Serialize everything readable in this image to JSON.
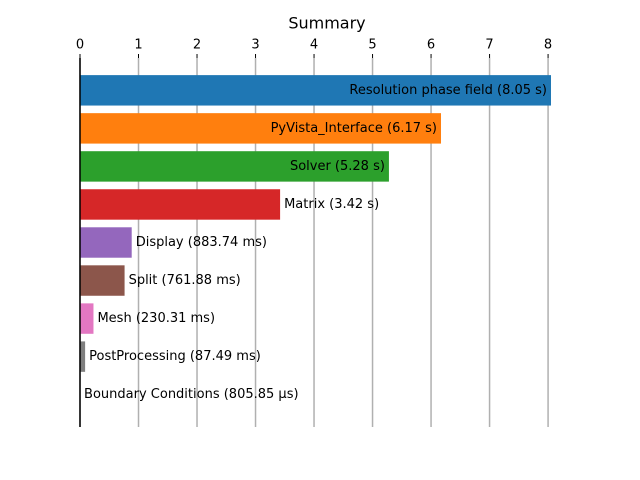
{
  "chart_data": {
    "type": "hbar",
    "title": "Summary",
    "value_labels": [
      "Resolution phase field (8.05 s)",
      "PyVista_Interface (6.17 s)",
      "Solver (5.28 s)",
      "Matrix (3.42 s)",
      "Display (883.74 ms)",
      "Split (761.88 ms)",
      "Mesh (230.31 ms)",
      "PostProcessing (87.49 ms)",
      "Boundary Conditions (805.85 µs)"
    ],
    "values": [
      8.05,
      6.17,
      5.28,
      3.42,
      0.88374,
      0.76188,
      0.23031,
      0.08749,
      0.00080585
    ],
    "colors": [
      "#1f77b4",
      "#ff7f0e",
      "#2ca02c",
      "#d62728",
      "#9467bd",
      "#8c564b",
      "#e377c2",
      "#7f7f7f",
      "#bcbd22"
    ],
    "xlim": [
      0,
      8.05
    ],
    "xticks": [
      0,
      1,
      2,
      3,
      4,
      5,
      6,
      7,
      8
    ],
    "grid": true
  }
}
